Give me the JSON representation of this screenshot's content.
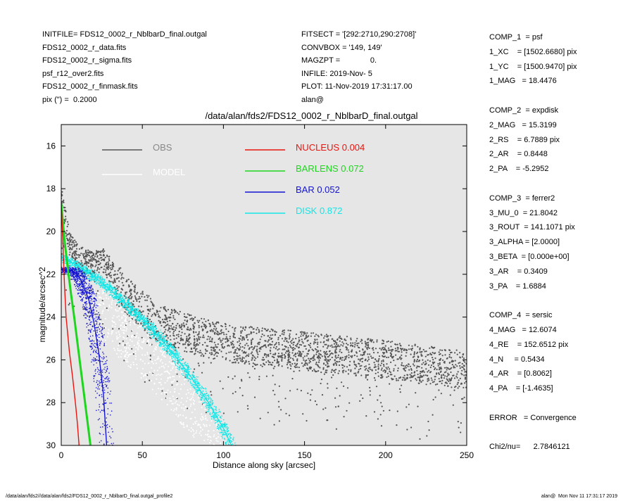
{
  "header_left": [
    "INITFILE= FDS12_0002_r_NblbarD_final.outgal",
    "FDS12_0002_r_data.fits",
    "FDS12_0002_r_sigma.fits",
    "psf_r12_over2.fits",
    "FDS12_0002_r_finmask.fits",
    "pix (\") =  0.2000"
  ],
  "header_mid": [
    "FITSECT = '[292:2710,290:2708]'",
    "CONVBOX = '149, 149'",
    "MAGZPT =              0.",
    "INFILE: 2019-Nov- 5",
    "PLOT: 11-Nov-2019 17:31:17.00",
    "alan@"
  ],
  "params": [
    "COMP_1  = psf",
    "1_XC    = [1502.6680] pix",
    "1_YC    = [1500.9470] pix",
    "1_MAG   = 18.4476",
    "",
    "COMP_2  = expdisk",
    "2_MAG   = 15.3199",
    "2_RS    = 6.7889 pix",
    "2_AR    = 0.8448",
    "2_PA    = -5.2952",
    "",
    "COMP_3  = ferrer2",
    "3_MU_0  = 21.8042",
    "3_ROUT  = 141.1071 pix",
    "3_ALPHA = [2.0000]",
    "3_BETA  = [0.000e+00]",
    "3_AR    = 0.3409",
    "3_PA    = 1.6884",
    "",
    "COMP_4  = sersic",
    "4_MAG   = 12.6074",
    "4_RE    = 152.6512 pix",
    "4_N     = 0.5434",
    "4_AR    = [0.8062]",
    "4_PA    = [-1.4635]",
    "",
    "ERROR   = Convergence",
    "",
    "Chi2/nu=      2.7846121"
  ],
  "footer_left": "/data/alan/fds2//data/alan/fds2/FDS12_0002_r_NblbarD_final.outgal_profile2",
  "footer_right": "alan@  Mon Nov 11 17:31:17 2019",
  "chart_data": {
    "type": "scatter",
    "title": "/data/alan/fds2/FDS12_0002_r_NblbarD_final.outgal",
    "xlabel": "Distance along sky [arcsec]",
    "ylabel": "magnitude/arcsec^2",
    "xlim": [
      0,
      250
    ],
    "ylim": [
      30,
      15
    ],
    "y_inverted": true,
    "xticks": [
      0,
      50,
      100,
      150,
      200,
      250
    ],
    "yticks": [
      16,
      18,
      20,
      22,
      24,
      26,
      28,
      30
    ],
    "background": "#e6e6e6",
    "legend_placement": "top",
    "legend": [
      {
        "label": "OBS",
        "color": "#555555"
      },
      {
        "label": "MODEL",
        "color": "#ffffff"
      },
      {
        "label": "NUCLEUS  0.004",
        "color": "#e8140f"
      },
      {
        "label": "BARLENS  0.072",
        "color": "#1ed61e"
      },
      {
        "label": "BAR  0.052",
        "color": "#1414d2"
      },
      {
        "label": "DISK  0.872",
        "color": "#14e6e6"
      }
    ],
    "series": [
      {
        "name": "NUCLEUS",
        "color": "#e8140f",
        "x": [
          0,
          1,
          2,
          3,
          5,
          7,
          9,
          10,
          11
        ],
        "y": [
          18.7,
          20.5,
          22.5,
          24.0,
          25.6,
          26.8,
          28.2,
          29.0,
          30.0
        ]
      },
      {
        "name": "BARLENS",
        "color": "#1ed61e",
        "x": [
          0,
          2,
          4,
          6,
          8,
          10,
          12,
          14,
          16,
          18
        ],
        "y": [
          18.7,
          20.4,
          21.7,
          22.9,
          24.0,
          25.2,
          26.4,
          27.6,
          28.8,
          30.0
        ]
      },
      {
        "name": "BAR",
        "color": "#1414d2",
        "x": [
          2,
          5,
          8,
          11,
          14,
          17,
          20,
          23,
          26,
          28
        ],
        "y": [
          21.8,
          21.8,
          21.9,
          22.1,
          22.6,
          23.2,
          24.2,
          25.6,
          27.6,
          30.0
        ]
      },
      {
        "name": "DISK",
        "color": "#14e6e6",
        "x": [
          0,
          10,
          20,
          30,
          40,
          50,
          60,
          70,
          80,
          90,
          100,
          105
        ],
        "y": [
          21.2,
          21.6,
          22.1,
          22.7,
          23.4,
          24.1,
          24.9,
          25.8,
          26.8,
          27.9,
          29.2,
          30.0
        ]
      },
      {
        "name": "OBS",
        "color": "#555555",
        "x": [
          0,
          5,
          10,
          20,
          25,
          30,
          40,
          60,
          80,
          100,
          150,
          200,
          250
        ],
        "y": [
          18.5,
          20.5,
          21.2,
          21.6,
          21.2,
          21.8,
          23.0,
          24.3,
          24.8,
          25.2,
          25.6,
          26.0,
          26.5
        ]
      }
    ]
  }
}
